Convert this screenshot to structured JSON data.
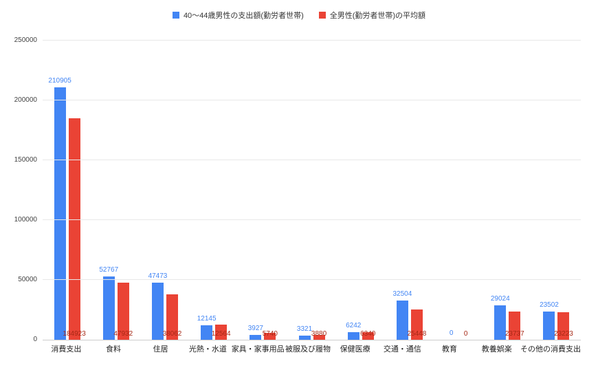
{
  "chart_data": {
    "type": "bar",
    "title": "",
    "categories": [
      "消費支出",
      "食料",
      "住居",
      "光熱・水道",
      "家具・家事用品",
      "被服及び履物",
      "保健医療",
      "交通・通信",
      "教育",
      "教養娯楽",
      "その他の消費支出"
    ],
    "series": [
      {
        "name": "40〜44歳男性の支出額(勤労者世帯)",
        "color": "#4285F4",
        "label_color": "#4285F4",
        "values": [
          210905,
          52767,
          47473,
          12145,
          3927,
          3321,
          6242,
          32504,
          0,
          29024,
          23502
        ]
      },
      {
        "name": "全男性(勤労者世帯)の平均額",
        "color": "#EA4335",
        "label_color": "#A52714",
        "values": [
          184923,
          47932,
          38062,
          12564,
          5740,
          3880,
          6340,
          25448,
          0,
          23737,
          23223
        ]
      }
    ],
    "ylim": [
      0,
      250000
    ],
    "yticks": [
      0,
      50000,
      100000,
      150000,
      200000,
      250000
    ],
    "grid": true,
    "legend_position": "top",
    "xlabel": "",
    "ylabel": ""
  },
  "colors": {
    "background": "#ffffff",
    "gridline": "#e8e8e8",
    "axis_line": "#cccccc",
    "axis_text": "#444444",
    "category_text": "#222222",
    "legend_text": "#333333"
  }
}
